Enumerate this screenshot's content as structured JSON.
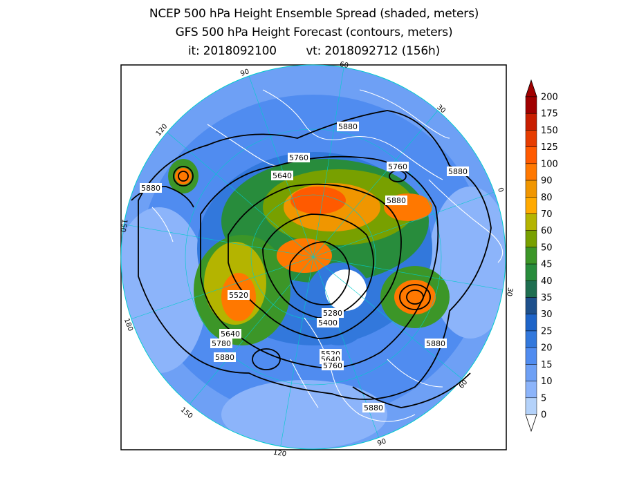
{
  "title": {
    "line1": "NCEP 500 hPa Height Ensemble Spread (shaded, meters)",
    "line2": "GFS 500 hPa Height Forecast (contours, meters)",
    "init_label": "it:",
    "init_time": "2018092100",
    "valid_label": "vt:",
    "valid_time": "2018092712 (156h)"
  },
  "longitude_labels": [
    "60",
    "30",
    "0",
    "30",
    "60",
    "90",
    "120",
    "150",
    "180",
    "150",
    "120",
    "90"
  ],
  "contour_labels": [
    "5880",
    "5760",
    "5640",
    "5760",
    "5880",
    "5880",
    "5880",
    "5520",
    "5280",
    "5400",
    "5640",
    "5780",
    "5880",
    "5520",
    "5640",
    "5760",
    "5880",
    "5880"
  ],
  "colorbar": {
    "levels": [
      "200",
      "175",
      "150",
      "125",
      "100",
      "90",
      "80",
      "70",
      "60",
      "50",
      "45",
      "40",
      "35",
      "30",
      "25",
      "20",
      "15",
      "10",
      "5",
      "0"
    ],
    "colors": [
      "#a00000",
      "#c81e00",
      "#e63c00",
      "#ff5a00",
      "#ff7800",
      "#f09600",
      "#ffaa00",
      "#b4b400",
      "#78a000",
      "#3c9628",
      "#288c3c",
      "#1e6e50",
      "#1e508c",
      "#1e64c8",
      "#3278dc",
      "#508cf0",
      "#6ea0f5",
      "#8cb4fa",
      "#b4d2fa"
    ]
  }
}
